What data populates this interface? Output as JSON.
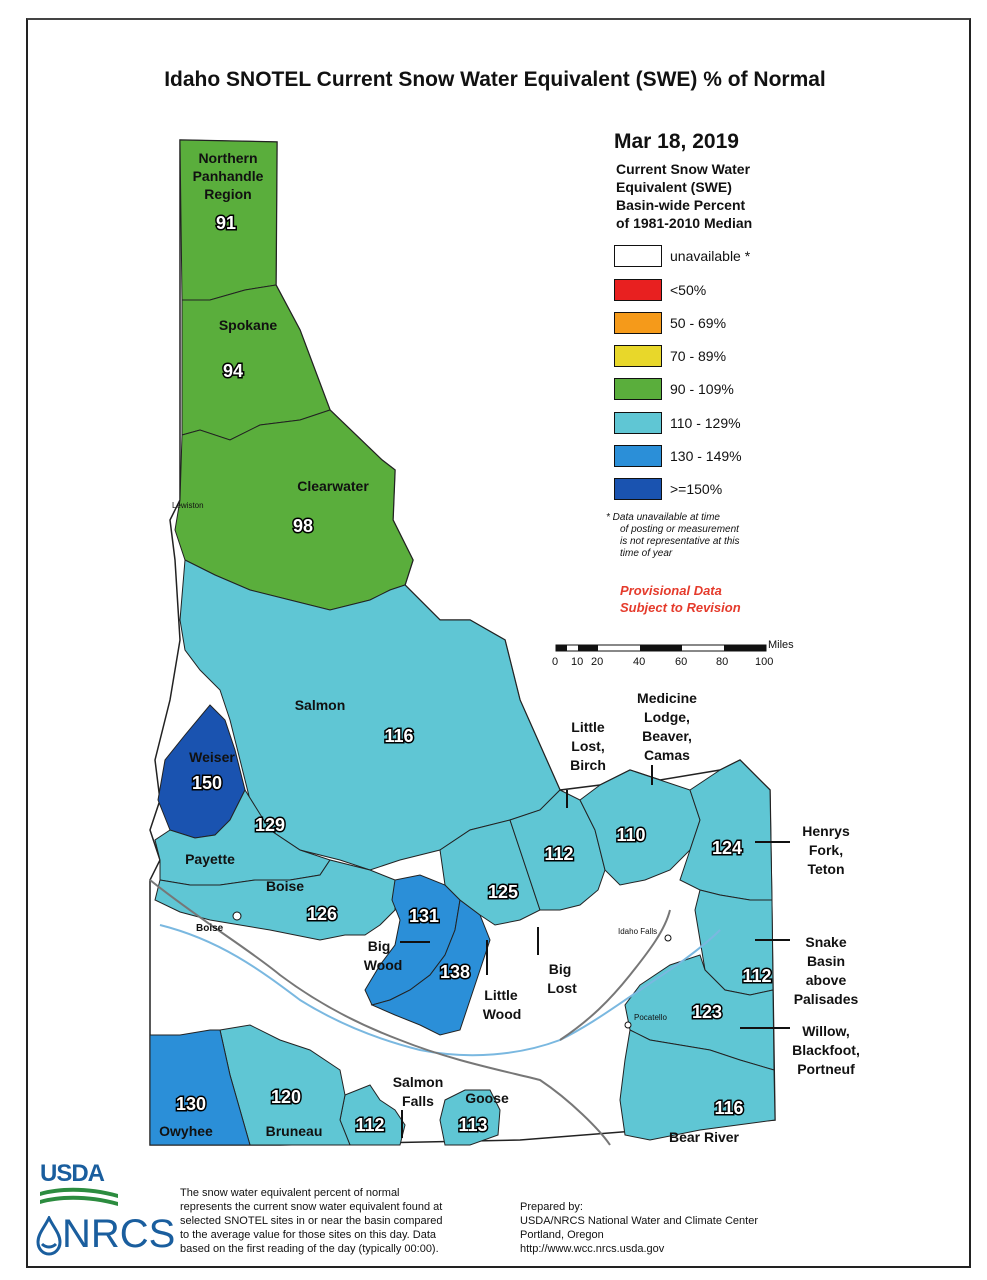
{
  "title": "Idaho SNOTEL Current Snow Water Equivalent (SWE) % of Normal",
  "legend": {
    "date": "Mar 18, 2019",
    "heading": [
      "Current Snow Water",
      "Equivalent (SWE)",
      "Basin-wide Percent",
      "of 1981-2010 Median"
    ],
    "items": [
      {
        "label": "unavailable *",
        "color": "#ffffff"
      },
      {
        "label": "<50%",
        "color": "#e82020"
      },
      {
        "label": "50 - 69%",
        "color": "#f59a1a"
      },
      {
        "label": "70 - 89%",
        "color": "#e8d72a"
      },
      {
        "label": "90 - 109%",
        "color": "#5aae3c"
      },
      {
        "label": "110 - 129%",
        "color": "#5fc6d4"
      },
      {
        "label": "130 - 149%",
        "color": "#2b8fd8"
      },
      {
        "label": ">=150%",
        "color": "#1a53b0"
      }
    ],
    "note": [
      "* Data unavailable at time",
      "of posting or measurement",
      "is not representative at this",
      "time of year"
    ],
    "provisional": [
      "Provisional Data",
      "Subject to Revision"
    ]
  },
  "scale": {
    "unit": "Miles",
    "ticks": [
      "0",
      "10",
      "20",
      "40",
      "60",
      "80",
      "100"
    ]
  },
  "basins": [
    {
      "name": "Northern Panhandle Region",
      "value": "91",
      "color": "#5aae3c"
    },
    {
      "name": "Spokane",
      "value": "94",
      "color": "#5aae3c"
    },
    {
      "name": "Clearwater",
      "value": "98",
      "color": "#5aae3c"
    },
    {
      "name": "Salmon",
      "value": "116",
      "color": "#5fc6d4"
    },
    {
      "name": "Weiser",
      "value": "150",
      "color": "#1a53b0"
    },
    {
      "name": "Payette",
      "value": "129",
      "color": "#5fc6d4"
    },
    {
      "name": "Boise",
      "value": "126",
      "color": "#5fc6d4"
    },
    {
      "name": "Big Wood",
      "value": "131",
      "color": "#2b8fd8"
    },
    {
      "name": "Little Wood",
      "value": "138",
      "color": "#2b8fd8"
    },
    {
      "name": "Big Lost",
      "value": "125",
      "color": "#5fc6d4"
    },
    {
      "name": "Little Lost, Birch",
      "value": "112",
      "color": "#5fc6d4"
    },
    {
      "name": "Medicine Lodge, Beaver, Camas",
      "value": "110",
      "color": "#5fc6d4"
    },
    {
      "name": "Henrys Fork, Teton",
      "value": "124",
      "color": "#5fc6d4"
    },
    {
      "name": "Snake Basin above Palisades",
      "value": "112",
      "color": "#5fc6d4"
    },
    {
      "name": "Willow, Blackfoot, Portneuf",
      "value": "123",
      "color": "#5fc6d4"
    },
    {
      "name": "Bear River",
      "value": "116",
      "color": "#5fc6d4"
    },
    {
      "name": "Goose",
      "value": "113",
      "color": "#5fc6d4"
    },
    {
      "name": "Salmon Falls",
      "value": "112",
      "color": "#5fc6d4"
    },
    {
      "name": "Bruneau",
      "value": "120",
      "color": "#5fc6d4"
    },
    {
      "name": "Owyhee",
      "value": "130",
      "color": "#2b8fd8"
    }
  ],
  "map_labels": {
    "panhandle": [
      "Northern",
      "Panhandle",
      "Region"
    ],
    "spokane": "Spokane",
    "clearwater": "Clearwater",
    "salmon": "Salmon",
    "weiser": "Weiser",
    "payette": "Payette",
    "boise": "Boise",
    "big_wood": [
      "Big",
      "Wood"
    ],
    "little_wood": [
      "Little",
      "Wood"
    ],
    "big_lost": [
      "Big",
      "Lost"
    ],
    "little_lost": [
      "Little",
      "Lost,",
      "Birch"
    ],
    "medicine": [
      "Medicine",
      "Lodge,",
      "Beaver,",
      "Camas"
    ],
    "henrys": [
      "Henrys",
      "Fork,",
      "Teton"
    ],
    "snake": [
      "Snake",
      "Basin",
      "above",
      "Palisades"
    ],
    "willow": [
      "Willow,",
      "Blackfoot,",
      "Portneuf"
    ],
    "bear": "Bear River",
    "goose": "Goose",
    "salmon_falls": [
      "Salmon",
      "Falls"
    ],
    "bruneau": "Bruneau",
    "owyhee": "Owyhee"
  },
  "cities": {
    "lewiston": "Lewiston",
    "boise": "Boise",
    "idaho_falls": "Idaho Falls",
    "pocatello": "Pocatello"
  },
  "footer": {
    "logo_usda": "USDA",
    "logo_nrcs": "NRCS",
    "description": [
      "The snow water equivalent percent of normal",
      "represents the current snow water equivalent found at",
      "selected SNOTEL sites in or near the basin compared",
      "to the average value for those sites on this day. Data",
      "based on the first reading of the day (typically 00:00)."
    ],
    "prepared": [
      "Prepared by:",
      "USDA/NRCS National Water and Climate Center",
      "Portland, Oregon",
      "http://www.wcc.nrcs.usda.gov"
    ]
  }
}
